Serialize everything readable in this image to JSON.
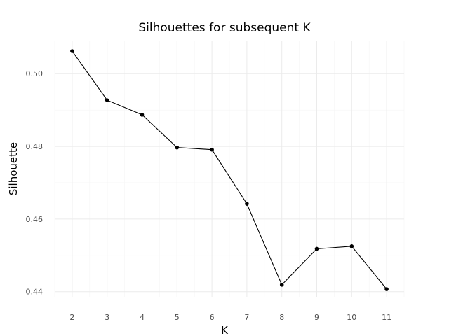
{
  "chart_data": {
    "type": "line",
    "title": "Silhouettes for subsequent K",
    "xlabel": "K",
    "ylabel": "Silhouette",
    "x": [
      2,
      3,
      4,
      5,
      6,
      7,
      8,
      9,
      10,
      11
    ],
    "y": [
      0.5062,
      0.4927,
      0.4887,
      0.4797,
      0.4791,
      0.4642,
      0.4419,
      0.4518,
      0.4525,
      0.4407
    ],
    "x_ticks": [
      "2",
      "3",
      "4",
      "5",
      "6",
      "7",
      "8",
      "9",
      "10",
      "11"
    ],
    "y_ticks": [
      "0.44",
      "0.46",
      "0.48",
      "0.50"
    ],
    "y_tick_values": [
      0.44,
      0.46,
      0.48,
      0.5
    ],
    "ylim": [
      0.4386,
      0.5091
    ],
    "xlim": [
      1.5,
      11.5
    ],
    "grid": true,
    "legend": "none",
    "line_color": "#000000",
    "point_color": "#000000",
    "grid_color": "#ebebeb"
  }
}
